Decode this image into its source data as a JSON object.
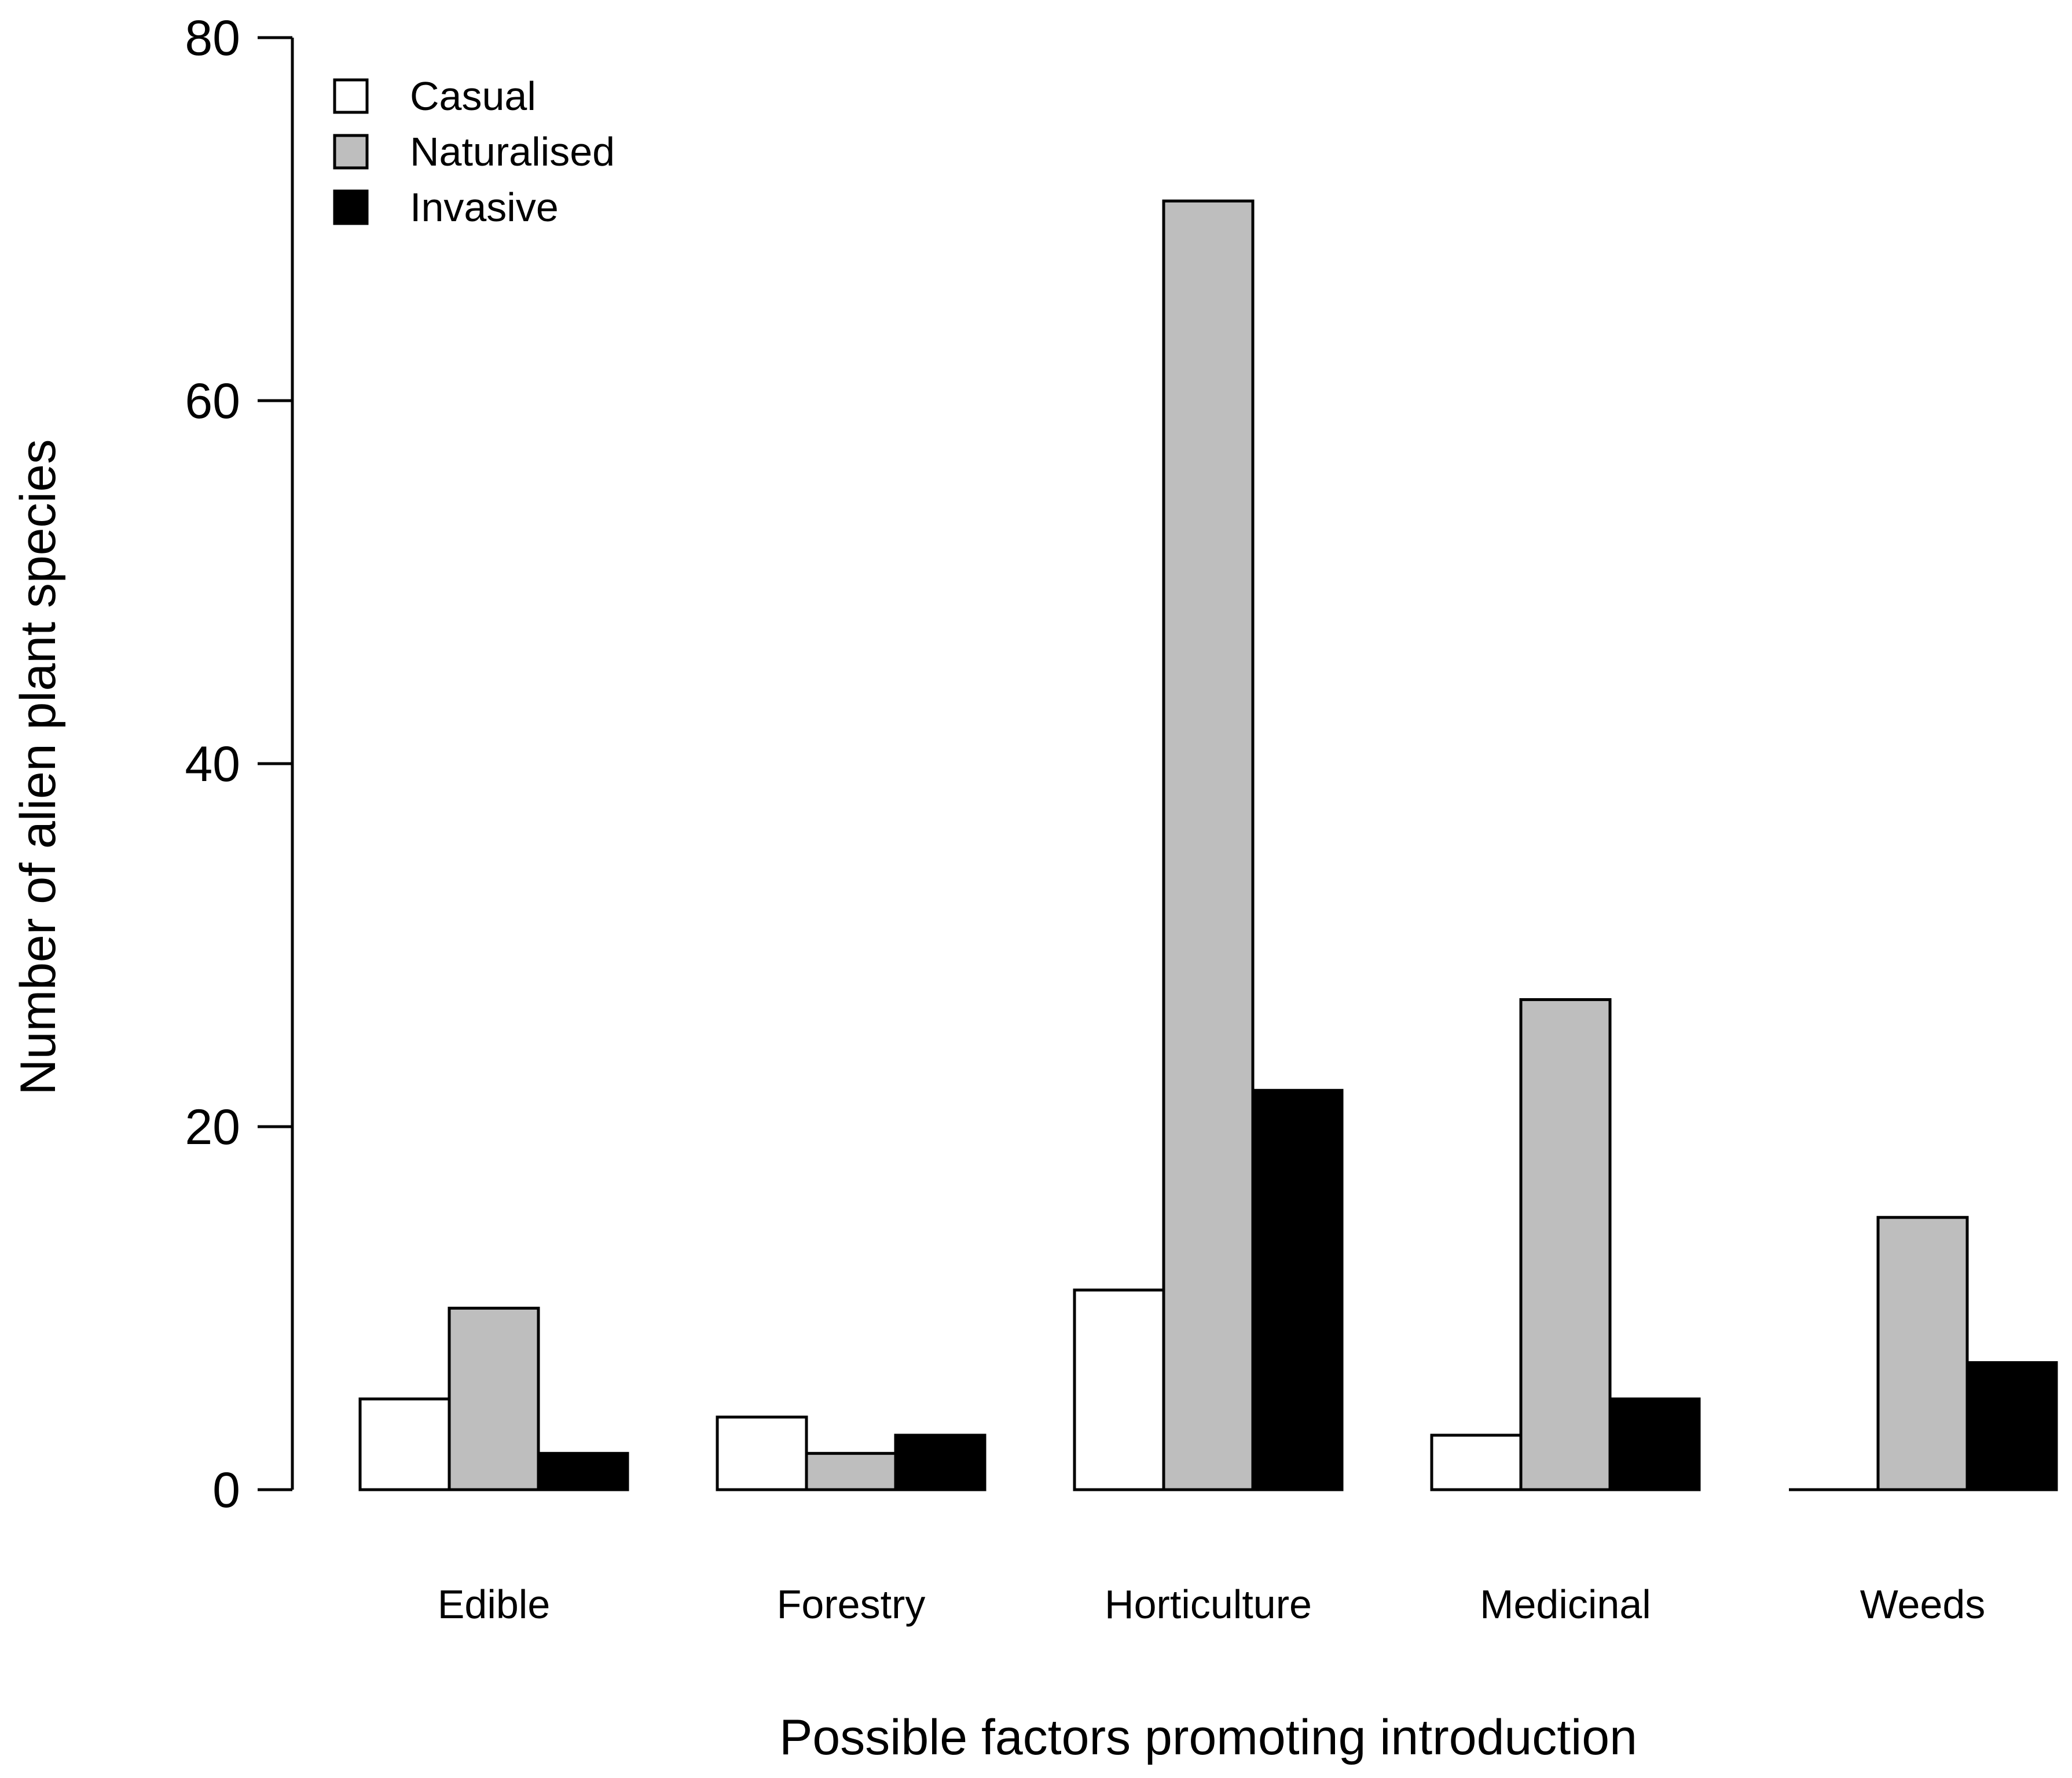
{
  "chart_data": {
    "type": "bar",
    "title": "",
    "xlabel": "Possible factors promoting introduction",
    "ylabel": "Number of alien plant species",
    "ylim": [
      0,
      80
    ],
    "yticks": [
      "0",
      "20",
      "40",
      "60",
      "80"
    ],
    "categories": [
      "Edible",
      "Forestry",
      "Horticulture",
      "Medicinal",
      "Weeds"
    ],
    "series": [
      {
        "name": "Casual",
        "color": "#ffffff",
        "values": [
          5,
          4,
          11,
          3,
          0
        ]
      },
      {
        "name": "Naturalised",
        "color": "#bebebe",
        "values": [
          10,
          2,
          71,
          27,
          15
        ]
      },
      {
        "name": "Invasive",
        "color": "#000000",
        "values": [
          2,
          3,
          22,
          5,
          7
        ]
      }
    ],
    "legend_position": "top-left",
    "grid": false
  }
}
